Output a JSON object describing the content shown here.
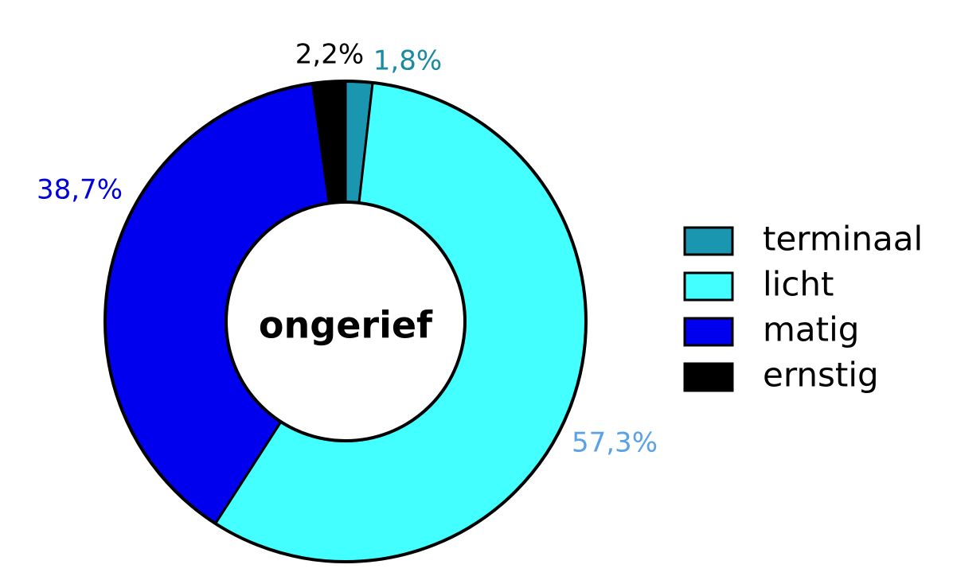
{
  "chart_data": {
    "type": "pie",
    "subtype": "donut",
    "center_label": "ongerief",
    "categories": [
      "terminaal",
      "licht",
      "matig",
      "ernstig"
    ],
    "values": [
      1.8,
      57.3,
      38.7,
      2.2
    ],
    "value_labels": [
      "1,8%",
      "57,3%",
      "38,7%",
      "2,2%"
    ],
    "colors": [
      "#1a96b0",
      "#44ffff",
      "#0000ee",
      "#000000"
    ],
    "label_colors": [
      "#1a8aa0",
      "#5aa2e6",
      "#0000dd",
      "#000000"
    ],
    "start_angle_deg": 0,
    "direction": "clockwise",
    "legend": {
      "position": "right",
      "entries": [
        "terminaal",
        "licht",
        "matig",
        "ernstig"
      ]
    }
  }
}
